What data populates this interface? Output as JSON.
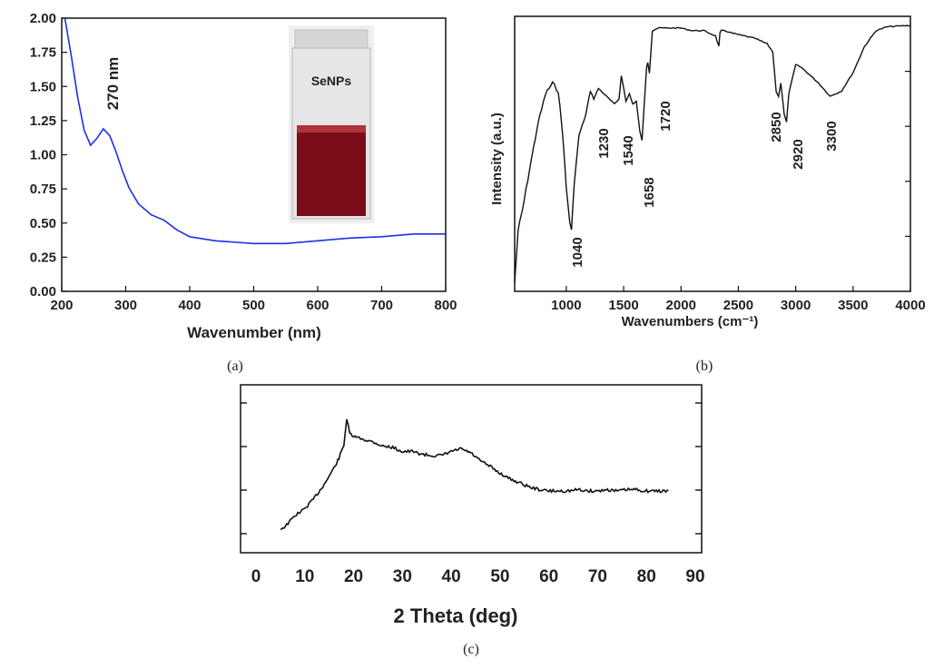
{
  "colors": {
    "uv_line": "#1f2fe6",
    "black": "#111111",
    "sol": "#7a0d18",
    "sol_top": "#b2323b",
    "cuvette_glass": "#e4e4e4",
    "cuvette_cap": "#d0d0d0"
  },
  "panel_labels": {
    "a": "(a)",
    "b": "(b)",
    "c": "(c)"
  },
  "chart_data": [
    {
      "id": "a",
      "type": "line",
      "xlabel": "Wavenumber (nm)",
      "ylabel": "",
      "xlim": [
        200,
        800
      ],
      "ylim": [
        0,
        2.0
      ],
      "xticks": [
        "200",
        "300",
        "400",
        "500",
        "600",
        "700",
        "800"
      ],
      "yticks": [
        "0.00",
        "0.25",
        "0.50",
        "0.75",
        "1.00",
        "1.25",
        "1.50",
        "1.75",
        "2.00"
      ],
      "annotations": [
        "270 nm"
      ],
      "inset": {
        "label": "SeNPs",
        "icon": "cuvette-photo"
      },
      "series": [
        {
          "x": [
            205,
            215,
            225,
            235,
            245,
            255,
            265,
            275,
            285,
            295,
            305,
            320,
            340,
            360,
            380,
            400,
            440,
            500,
            550,
            600,
            650,
            700,
            750,
            800
          ],
          "y": [
            2.0,
            1.72,
            1.42,
            1.18,
            1.07,
            1.12,
            1.19,
            1.14,
            1.02,
            0.88,
            0.76,
            0.64,
            0.56,
            0.52,
            0.45,
            0.4,
            0.37,
            0.35,
            0.35,
            0.37,
            0.39,
            0.4,
            0.42,
            0.42
          ]
        }
      ]
    },
    {
      "id": "b",
      "type": "line",
      "xlabel": "Wavenumbers (cm⁻¹)",
      "ylabel": "Intensity (a.u.)",
      "xlim": [
        550,
        4000
      ],
      "ylim": [
        0,
        1
      ],
      "xticks": [
        "1000",
        "1500",
        "2000",
        "2500",
        "3000",
        "3500",
        "4000"
      ],
      "annotations": [
        "1040",
        "1230",
        "1540",
        "1658",
        "1720",
        "2850",
        "2920",
        "3300"
      ],
      "series": [
        {
          "x": [
            550,
            580,
            620,
            680,
            750,
            820,
            880,
            930,
            970,
            1000,
            1030,
            1045,
            1070,
            1110,
            1170,
            1210,
            1240,
            1280,
            1350,
            1420,
            1460,
            1480,
            1500,
            1520,
            1550,
            1580,
            1610,
            1640,
            1660,
            1680,
            1700,
            1710,
            1725,
            1750,
            1800,
            1900,
            2000,
            2100,
            2200,
            2300,
            2330,
            2340,
            2350,
            2380,
            2450,
            2550,
            2650,
            2750,
            2800,
            2830,
            2850,
            2870,
            2900,
            2920,
            2940,
            3000,
            3050,
            3100,
            3200,
            3300,
            3400,
            3500,
            3600,
            3700,
            3800,
            4000
          ],
          "y": [
            0.02,
            0.22,
            0.3,
            0.45,
            0.62,
            0.74,
            0.78,
            0.75,
            0.58,
            0.38,
            0.25,
            0.22,
            0.4,
            0.58,
            0.66,
            0.75,
            0.72,
            0.76,
            0.73,
            0.7,
            0.72,
            0.81,
            0.76,
            0.71,
            0.74,
            0.7,
            0.71,
            0.6,
            0.56,
            0.7,
            0.84,
            0.86,
            0.82,
            0.98,
            0.99,
            0.99,
            0.99,
            0.98,
            0.98,
            0.96,
            0.92,
            0.97,
            0.98,
            0.98,
            0.97,
            0.96,
            0.95,
            0.93,
            0.9,
            0.75,
            0.73,
            0.78,
            0.66,
            0.63,
            0.74,
            0.85,
            0.84,
            0.82,
            0.78,
            0.73,
            0.75,
            0.82,
            0.92,
            0.98,
            0.995,
            1.0
          ]
        }
      ]
    },
    {
      "id": "c",
      "type": "line",
      "xlabel": "2 Theta (deg)",
      "ylabel": "",
      "xlim": [
        0,
        90
      ],
      "ylim": [
        0,
        1
      ],
      "xticks": [
        "0",
        "10",
        "20",
        "30",
        "40",
        "50",
        "60",
        "70",
        "80",
        "90"
      ],
      "series": [
        {
          "x": [
            5,
            6,
            8,
            10,
            12,
            14,
            16,
            17,
            18,
            18.6,
            19.2,
            20,
            22,
            24,
            26,
            28,
            30,
            32,
            34,
            36,
            38,
            40,
            42,
            44,
            46,
            48,
            50,
            52,
            54,
            56,
            58,
            60,
            62,
            64,
            66,
            68,
            70,
            72,
            74,
            76,
            78,
            80,
            82,
            84.5
          ],
          "y": [
            0.04,
            0.06,
            0.14,
            0.19,
            0.27,
            0.37,
            0.49,
            0.56,
            0.66,
            0.85,
            0.74,
            0.72,
            0.7,
            0.68,
            0.65,
            0.64,
            0.61,
            0.61,
            0.59,
            0.58,
            0.58,
            0.61,
            0.63,
            0.6,
            0.54,
            0.5,
            0.45,
            0.41,
            0.38,
            0.35,
            0.33,
            0.32,
            0.32,
            0.32,
            0.33,
            0.32,
            0.32,
            0.33,
            0.32,
            0.33,
            0.33,
            0.32,
            0.32,
            0.32
          ]
        }
      ]
    }
  ]
}
